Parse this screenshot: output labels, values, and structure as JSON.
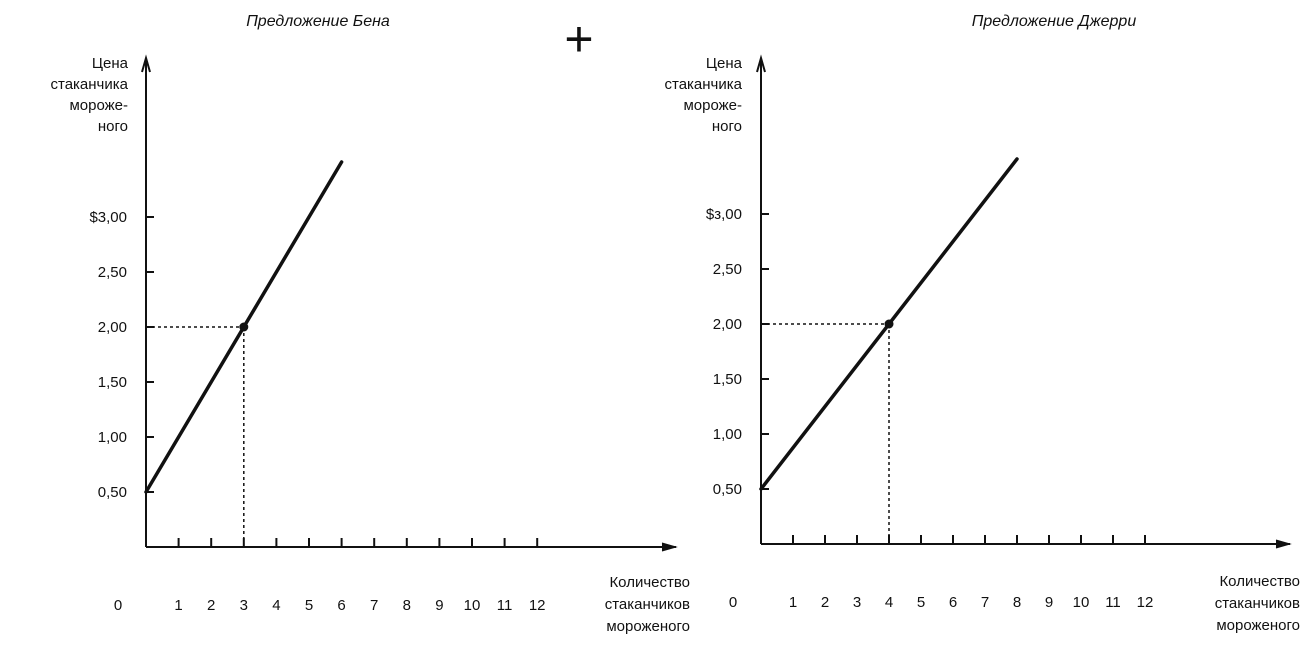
{
  "operator": "+",
  "chart_data": [
    {
      "type": "line",
      "title": "Предложение    Бена",
      "ylabel": [
        "Цена",
        "стаканчика",
        "мороже-",
        "ного"
      ],
      "xlabel": [
        "Количество",
        "стаканчиков",
        "мороженого"
      ],
      "origin_label": "0",
      "y_ticks": [
        "$3,00",
        "2,50",
        "2,00",
        "1,50",
        "1,00",
        "0,50"
      ],
      "y_tick_values": [
        3.0,
        2.5,
        2.0,
        1.5,
        1.0,
        0.5
      ],
      "x_ticks": [
        "1",
        "2",
        "3",
        "4",
        "5",
        "6",
        "7",
        "8",
        "9",
        "10",
        "11",
        "12"
      ],
      "xlim": [
        0,
        12
      ],
      "ylim": [
        0,
        3.5
      ],
      "series": [
        {
          "x": [
            0,
            6
          ],
          "y": [
            0.5,
            3.5
          ]
        }
      ],
      "highlight": {
        "x": 3,
        "y": 2.0
      }
    },
    {
      "type": "line",
      "title": "Предложение Джерри",
      "ylabel": [
        "Цена",
        "стаканчика",
        "мороже-",
        "ного"
      ],
      "xlabel": [
        "Количество",
        "стаканчиков",
        "мороженого"
      ],
      "origin_label": "0",
      "y_ticks": [
        "$з,00",
        "2,50",
        "2,00",
        "1,50",
        "1,00",
        "0,50"
      ],
      "y_tick_values": [
        3.0,
        2.5,
        2.0,
        1.5,
        1.0,
        0.5
      ],
      "x_ticks": [
        "1",
        "2",
        "3",
        "4",
        "5",
        "6",
        "7",
        "8",
        "9",
        "10",
        "11",
        "12"
      ],
      "xlim": [
        0,
        12
      ],
      "ylim": [
        0,
        3.5
      ],
      "series": [
        {
          "x": [
            0,
            8
          ],
          "y": [
            0.5,
            3.5
          ]
        }
      ],
      "highlight": {
        "x": 4,
        "y": 2.0
      }
    }
  ]
}
